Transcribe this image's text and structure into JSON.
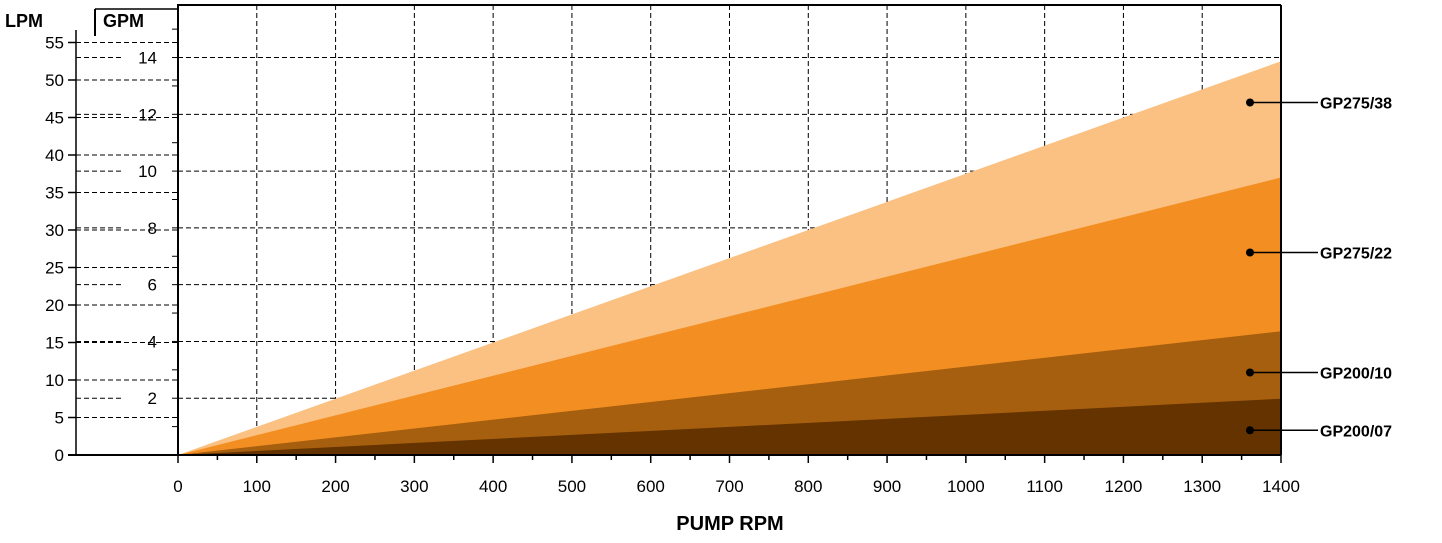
{
  "chart_data": {
    "type": "area",
    "title": "",
    "xlabel": "PUMP RPM",
    "ylabel_left": "LPM",
    "ylabel_right": "GPM",
    "x_ticks": [
      0,
      100,
      200,
      300,
      400,
      500,
      600,
      700,
      800,
      900,
      1000,
      1100,
      1200,
      1300,
      1400
    ],
    "xlim": [
      0,
      1400
    ],
    "lpm_ticks": [
      0,
      5,
      10,
      15,
      20,
      25,
      30,
      35,
      40,
      45,
      50,
      55
    ],
    "lpm_lim": [
      0,
      60
    ],
    "gpm_ticks": [
      2,
      4,
      6,
      8,
      10,
      12,
      14
    ],
    "grid": true,
    "grid_style": "dashed",
    "legend": "right",
    "series": [
      {
        "name": "GP275/38",
        "x": [
          0,
          1400
        ],
        "y_lpm": [
          0,
          52.5
        ],
        "color": "#fbc182"
      },
      {
        "name": "GP275/22",
        "x": [
          0,
          1400
        ],
        "y_lpm": [
          0,
          37
        ],
        "color": "#f38f22"
      },
      {
        "name": "GP200/10",
        "x": [
          0,
          1400
        ],
        "y_lpm": [
          0,
          16.5
        ],
        "color": "#a65f0e"
      },
      {
        "name": "GP200/07",
        "x": [
          0,
          1400
        ],
        "y_lpm": [
          0,
          7.5
        ],
        "color": "#643300"
      }
    ],
    "series_label_lpm": [
      47,
      27,
      11,
      3.3
    ]
  }
}
